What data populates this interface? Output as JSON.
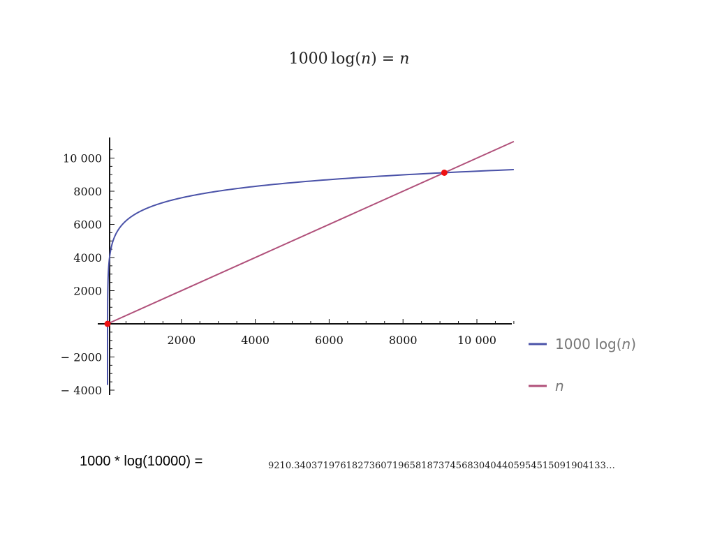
{
  "title": {
    "left": "1000",
    "func": "log(",
    "var": "n",
    "close": ")",
    "eq": " = ",
    "rhs": "n"
  },
  "chart_data": {
    "type": "line",
    "x_range": [
      0,
      11000
    ],
    "y_range": [
      -4000,
      11000
    ],
    "x_ticks": [
      2000,
      4000,
      6000,
      8000,
      10000
    ],
    "x_tick_labels": [
      "2000",
      "4000",
      "6000",
      "8000",
      "10 000"
    ],
    "y_ticks": [
      -4000,
      -2000,
      2000,
      4000,
      6000,
      8000,
      10000
    ],
    "y_tick_labels": [
      "− 4000",
      "− 2000",
      "2000",
      "4000",
      "6000",
      "8000",
      "10 000"
    ],
    "series": [
      {
        "name": "1000 log(n)",
        "function": "1000*ln(n)",
        "color": "#4a52a8"
      },
      {
        "name": "n",
        "function": "n",
        "color": "#b0507a"
      }
    ],
    "intersections": [
      {
        "x": 1,
        "y": 0
      },
      {
        "x": 9118,
        "y": 9118
      }
    ],
    "marker_color": "#ee1111",
    "legend_position": "right"
  },
  "legend": {
    "series1_prefix": "1000 log(",
    "series1_var": "n",
    "series1_suffix": ")",
    "series2_var": "n"
  },
  "calculation": {
    "label": "1000 * log(10000) =",
    "result": "9210.340371976182736071965818737456830404405954515091904133…"
  }
}
